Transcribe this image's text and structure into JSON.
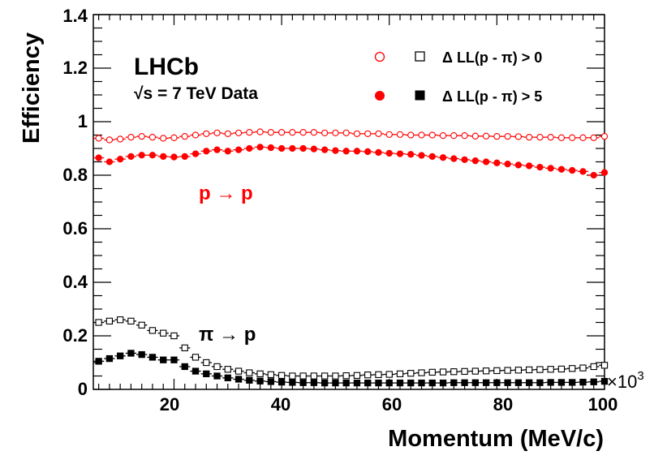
{
  "chart_data": {
    "type": "scatter",
    "title": "",
    "xlabel": "Momentum (MeV/c)",
    "ylabel": "Efficiency",
    "x_multiplier_label": "×10",
    "x_multiplier_exponent": "3",
    "xlim": [
      5,
      100
    ],
    "ylim": [
      0,
      1.4
    ],
    "xticks": [
      20,
      40,
      60,
      80,
      100
    ],
    "yticks": [
      0,
      0.2,
      0.4,
      0.6,
      0.8,
      1,
      1.2,
      1.4
    ],
    "ytick_labels": [
      "0",
      "0.2",
      "0.4",
      "0.6",
      "0.8",
      "1",
      "1.2",
      "1.4"
    ],
    "bin_half_width": 1,
    "annotations": {
      "experiment": "LHCb",
      "sqrt_symbol": "√s",
      "energy": " = 7 TeV Data",
      "p_to_p": "p → p",
      "pi_to_p": "π → p"
    },
    "legend": [
      {
        "label": "Δ LL(p - π) > 0",
        "markers": [
          "open-circle",
          "open-square"
        ]
      },
      {
        "label": "Δ LL(p - π) > 5",
        "markers": [
          "filled-circle",
          "filled-square"
        ]
      }
    ],
    "colors": {
      "red": "#ff0000",
      "black": "#000000"
    },
    "x": [
      6,
      8,
      10,
      12,
      14,
      16,
      18,
      20,
      22,
      24,
      26,
      28,
      30,
      32,
      34,
      36,
      38,
      40,
      42,
      44,
      46,
      48,
      50,
      52,
      54,
      56,
      58,
      60,
      62,
      64,
      66,
      68,
      70,
      72,
      74,
      76,
      78,
      80,
      82,
      84,
      86,
      88,
      90,
      92,
      94,
      96,
      98,
      100
    ],
    "series": [
      {
        "name": "p → p, Δ LL(p - π) > 0",
        "marker": "open-circle",
        "color": "#ff0000",
        "values": [
          0.938,
          0.932,
          0.935,
          0.942,
          0.945,
          0.942,
          0.938,
          0.94,
          0.945,
          0.95,
          0.955,
          0.958,
          0.955,
          0.958,
          0.96,
          0.962,
          0.96,
          0.96,
          0.96,
          0.96,
          0.96,
          0.958,
          0.958,
          0.958,
          0.955,
          0.955,
          0.955,
          0.952,
          0.952,
          0.95,
          0.95,
          0.95,
          0.948,
          0.948,
          0.948,
          0.946,
          0.946,
          0.945,
          0.945,
          0.944,
          0.942,
          0.942,
          0.942,
          0.94,
          0.94,
          0.94,
          0.94,
          0.945
        ]
      },
      {
        "name": "p → p, Δ LL(p - π) > 5",
        "marker": "filled-circle",
        "color": "#ff0000",
        "values": [
          0.865,
          0.85,
          0.86,
          0.87,
          0.875,
          0.875,
          0.87,
          0.868,
          0.87,
          0.88,
          0.89,
          0.895,
          0.89,
          0.895,
          0.9,
          0.905,
          0.903,
          0.9,
          0.9,
          0.9,
          0.898,
          0.895,
          0.892,
          0.89,
          0.89,
          0.888,
          0.885,
          0.882,
          0.88,
          0.878,
          0.874,
          0.87,
          0.866,
          0.862,
          0.858,
          0.854,
          0.85,
          0.846,
          0.842,
          0.838,
          0.835,
          0.83,
          0.826,
          0.822,
          0.818,
          0.814,
          0.8,
          0.81
        ]
      },
      {
        "name": "π → p, Δ LL(p - π) > 0",
        "marker": "open-square",
        "color": "#000000",
        "values": [
          0.25,
          0.255,
          0.26,
          0.255,
          0.24,
          0.22,
          0.21,
          0.2,
          0.155,
          0.12,
          0.1,
          0.085,
          0.075,
          0.068,
          0.062,
          0.058,
          0.055,
          0.052,
          0.05,
          0.05,
          0.05,
          0.05,
          0.05,
          0.051,
          0.052,
          0.054,
          0.055,
          0.056,
          0.058,
          0.06,
          0.062,
          0.064,
          0.065,
          0.066,
          0.067,
          0.068,
          0.069,
          0.07,
          0.071,
          0.072,
          0.073,
          0.074,
          0.075,
          0.076,
          0.078,
          0.08,
          0.085,
          0.09
        ]
      },
      {
        "name": "π → p, Δ LL(p - π) > 5",
        "marker": "filled-square",
        "color": "#000000",
        "values": [
          0.105,
          0.115,
          0.125,
          0.135,
          0.13,
          0.12,
          0.11,
          0.11,
          0.085,
          0.068,
          0.058,
          0.05,
          0.043,
          0.038,
          0.034,
          0.031,
          0.029,
          0.027,
          0.026,
          0.025,
          0.025,
          0.024,
          0.024,
          0.024,
          0.024,
          0.024,
          0.024,
          0.024,
          0.024,
          0.024,
          0.024,
          0.024,
          0.024,
          0.025,
          0.025,
          0.025,
          0.025,
          0.025,
          0.025,
          0.025,
          0.025,
          0.025,
          0.026,
          0.026,
          0.026,
          0.027,
          0.028,
          0.03
        ]
      }
    ]
  }
}
